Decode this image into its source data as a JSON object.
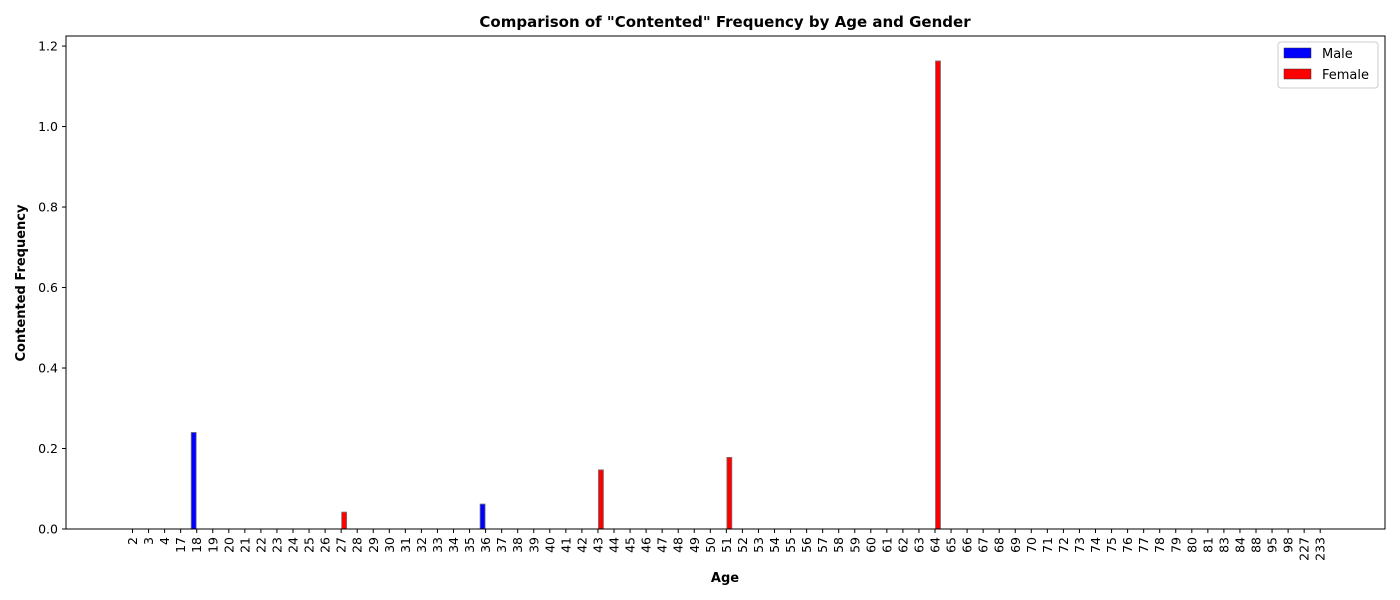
{
  "chart_data": {
    "type": "bar",
    "title": "Comparison of \"Contented\" Frequency by Age and Gender",
    "xlabel": "Age",
    "ylabel": "Contented Frequency",
    "categories": [
      "2",
      "3",
      "4",
      "17",
      "18",
      "19",
      "20",
      "21",
      "22",
      "23",
      "24",
      "25",
      "26",
      "27",
      "28",
      "29",
      "30",
      "31",
      "32",
      "33",
      "34",
      "35",
      "36",
      "37",
      "38",
      "39",
      "40",
      "41",
      "42",
      "43",
      "44",
      "45",
      "46",
      "47",
      "48",
      "49",
      "50",
      "51",
      "52",
      "53",
      "54",
      "55",
      "56",
      "57",
      "58",
      "59",
      "60",
      "61",
      "62",
      "63",
      "64",
      "65",
      "66",
      "67",
      "68",
      "69",
      "70",
      "71",
      "72",
      "73",
      "74",
      "75",
      "76",
      "77",
      "78",
      "79",
      "80",
      "81",
      "83",
      "84",
      "88",
      "95",
      "98",
      "227",
      "233"
    ],
    "series": [
      {
        "name": "Male",
        "color": "#0000ff",
        "values": [
          0,
          0,
          0,
          0,
          0.24,
          0,
          0,
          0,
          0,
          0,
          0,
          0,
          0,
          0,
          0,
          0,
          0,
          0,
          0,
          0,
          0,
          0,
          0.062,
          0,
          0,
          0,
          0,
          0,
          0,
          0,
          0,
          0,
          0,
          0,
          0,
          0,
          0,
          0,
          0,
          0,
          0,
          0,
          0,
          0,
          0,
          0,
          0,
          0,
          0,
          0,
          0,
          0,
          0,
          0,
          0,
          0,
          0,
          0,
          0,
          0,
          0,
          0,
          0,
          0,
          0,
          0,
          0,
          0,
          0,
          0,
          0,
          0,
          0,
          0,
          0
        ]
      },
      {
        "name": "Female",
        "color": "#ff0000",
        "values": [
          0,
          0,
          0,
          0,
          0,
          0,
          0,
          0,
          0,
          0,
          0,
          0,
          0,
          0.042,
          0,
          0,
          0,
          0,
          0,
          0,
          0,
          0,
          0,
          0,
          0,
          0,
          0,
          0,
          0,
          0.147,
          0,
          0,
          0,
          0,
          0,
          0,
          0,
          0.178,
          0,
          0,
          0,
          0,
          0,
          0,
          0,
          0,
          0,
          0,
          0,
          0,
          1.163,
          0,
          0,
          0,
          0,
          0,
          0,
          0,
          0,
          0,
          0,
          0,
          0,
          0,
          0,
          0,
          0,
          0,
          0,
          0,
          0,
          0,
          0,
          0,
          0
        ]
      }
    ],
    "ylim": [
      0,
      1.225
    ],
    "yticks": [
      "0.0",
      "0.2",
      "0.4",
      "0.6",
      "0.8",
      "1.0",
      "1.2"
    ],
    "grid": false,
    "legend_position": "top-right"
  }
}
